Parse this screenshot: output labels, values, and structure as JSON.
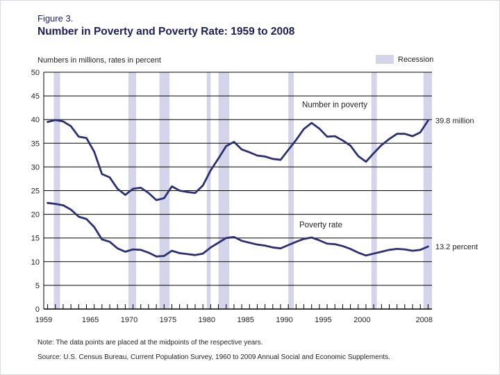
{
  "figure": {
    "label": "Figure 3.",
    "title": "Number in Poverty and Poverty Rate: 1959 to 2008"
  },
  "notes": {
    "note": "Note:  The data points are placed at the midpoints of the respective years.",
    "source": "Source:  U.S. Census Bureau, Current Population Survey, 1960 to 2009 Annual Social and Economic Supplements."
  },
  "colors": {
    "line": "#2b2f74",
    "recession": "#d4d4ea",
    "grid": "#000000",
    "title": "#1b1e5c"
  },
  "chart_data": {
    "type": "line",
    "ylabel": "Numbers in millions, rates in percent",
    "ylim": [
      0,
      50
    ],
    "yticks": [
      0,
      5,
      10,
      15,
      20,
      25,
      30,
      35,
      40,
      45,
      50
    ],
    "xlim": [
      1959,
      2009
    ],
    "xtick_labels": [
      "1959",
      "1965",
      "1970",
      "1975",
      "1980",
      "1985",
      "1990",
      "1995",
      "2000",
      "2008"
    ],
    "xtick_values": [
      1959,
      1965,
      1970,
      1975,
      1980,
      1985,
      1990,
      1995,
      2000,
      2008
    ],
    "grid": "horizontal",
    "legend": {
      "label": "Recession",
      "position": "top-right"
    },
    "recessions": [
      [
        1960.3,
        1961.1
      ],
      [
        1969.9,
        1970.9
      ],
      [
        1973.9,
        1975.2
      ],
      [
        1980.0,
        1980.5
      ],
      [
        1981.5,
        1982.9
      ],
      [
        1990.5,
        1991.2
      ],
      [
        2001.2,
        2001.9
      ],
      [
        2007.9,
        2009.0
      ]
    ],
    "series": [
      {
        "name": "Number in poverty",
        "end_label": "39.8 million",
        "x": [
          1959,
          1960,
          1961,
          1962,
          1963,
          1964,
          1965,
          1966,
          1967,
          1968,
          1969,
          1970,
          1971,
          1972,
          1973,
          1974,
          1975,
          1976,
          1977,
          1978,
          1979,
          1980,
          1981,
          1982,
          1983,
          1984,
          1985,
          1986,
          1987,
          1988,
          1989,
          1990,
          1991,
          1992,
          1993,
          1994,
          1995,
          1996,
          1997,
          1998,
          1999,
          2000,
          2001,
          2002,
          2003,
          2004,
          2005,
          2006,
          2007,
          2008
        ],
        "values": [
          39.5,
          39.9,
          39.6,
          38.6,
          36.4,
          36.1,
          33.2,
          28.5,
          27.8,
          25.4,
          24.1,
          25.4,
          25.6,
          24.5,
          23.0,
          23.4,
          25.9,
          25.0,
          24.7,
          24.5,
          26.1,
          29.3,
          31.8,
          34.4,
          35.3,
          33.7,
          33.1,
          32.4,
          32.2,
          31.7,
          31.5,
          33.6,
          35.7,
          38.0,
          39.3,
          38.1,
          36.4,
          36.5,
          35.6,
          34.5,
          32.3,
          31.1,
          32.9,
          34.6,
          35.9,
          37.0,
          37.0,
          36.5,
          37.3,
          39.8
        ]
      },
      {
        "name": "Poverty rate",
        "end_label": "13.2 percent",
        "x": [
          1959,
          1960,
          1961,
          1962,
          1963,
          1964,
          1965,
          1966,
          1967,
          1968,
          1969,
          1970,
          1971,
          1972,
          1973,
          1974,
          1975,
          1976,
          1977,
          1978,
          1979,
          1980,
          1981,
          1982,
          1983,
          1984,
          1985,
          1986,
          1987,
          1988,
          1989,
          1990,
          1991,
          1992,
          1993,
          1994,
          1995,
          1996,
          1997,
          1998,
          1999,
          2000,
          2001,
          2002,
          2003,
          2004,
          2005,
          2006,
          2007,
          2008
        ],
        "values": [
          22.4,
          22.2,
          21.9,
          21.0,
          19.5,
          19.0,
          17.3,
          14.7,
          14.2,
          12.8,
          12.1,
          12.6,
          12.5,
          11.9,
          11.1,
          11.2,
          12.3,
          11.8,
          11.6,
          11.4,
          11.7,
          13.0,
          14.0,
          15.0,
          15.2,
          14.4,
          14.0,
          13.6,
          13.4,
          13.0,
          12.8,
          13.5,
          14.2,
          14.8,
          15.1,
          14.5,
          13.8,
          13.7,
          13.3,
          12.7,
          11.9,
          11.3,
          11.7,
          12.1,
          12.5,
          12.7,
          12.6,
          12.3,
          12.5,
          13.2
        ]
      }
    ]
  }
}
